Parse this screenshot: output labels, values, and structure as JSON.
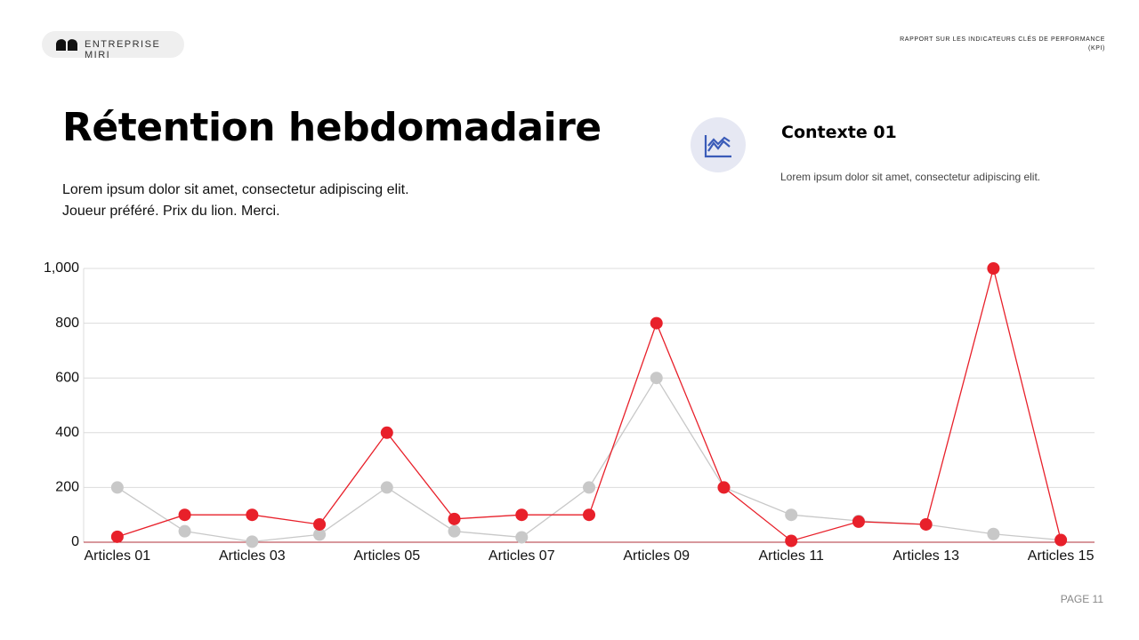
{
  "header": {
    "brand": "ENTREPRISE MIRI",
    "report": "RAPPORT SUR LES INDICATEURS CLÉS DE PERFORMANCE (KPI)"
  },
  "title": "Rétention hebdomadaire",
  "body": [
    "Lorem ipsum dolor sit amet, consectetur adipiscing elit.",
    "Joueur préféré. Prix du lion. Merci."
  ],
  "context": {
    "title": "Contexte 01",
    "text": "Lorem ipsum dolor sit amet, consectetur adipiscing elit."
  },
  "page": "PAGE 11",
  "chart_data": {
    "type": "line",
    "categories": [
      "Articles 01",
      null,
      "Articles 03",
      null,
      "Articles 05",
      null,
      "Articles 07",
      null,
      "Articles 09",
      null,
      "Articles 11",
      null,
      "Articles 13",
      null,
      "Articles 15"
    ],
    "series": [
      {
        "color": "#c8c8c8",
        "values": [
          200,
          40,
          2,
          28,
          200,
          40,
          18,
          200,
          600,
          200,
          100,
          78,
          65,
          30,
          8
        ]
      },
      {
        "color": "#e8202a",
        "values": [
          20,
          100,
          100,
          65,
          400,
          85,
          100,
          100,
          800,
          200,
          5,
          75,
          65,
          1000,
          8
        ]
      }
    ],
    "ylim": [
      0,
      1000
    ],
    "yticks": [
      0,
      200,
      400,
      600,
      800,
      {
        "value": 1000,
        "label": "1,000"
      }
    ],
    "grid": true
  }
}
